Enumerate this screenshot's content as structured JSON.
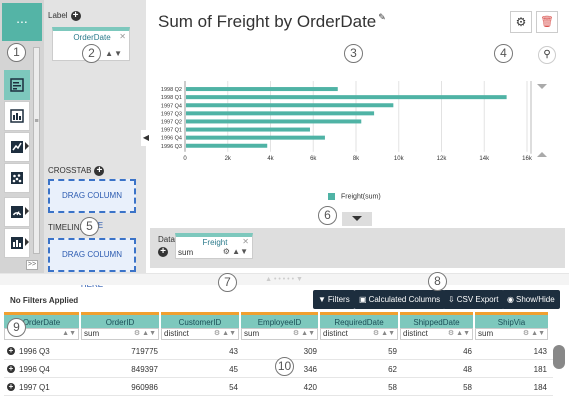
{
  "rail": {
    "top_icon": "...",
    "expand": ">>",
    "buttons": [
      "bar-chart-icon",
      "column-chart-icon",
      "line-chart-icon",
      "scatter-icon",
      "gauge-icon",
      "table-icon"
    ]
  },
  "config": {
    "label_header": "Label",
    "label_pill": {
      "name": "OrderDate"
    },
    "crosstab_header": "CROSSTAB",
    "timeline_header": "TIMELINE",
    "dropzone_text": "DRAG COLUMN HERE"
  },
  "chart": {
    "title": "Sum of Freight by OrderDate",
    "legend": "Freight(sum)",
    "color": "#4fb3a5"
  },
  "chart_data": {
    "type": "bar",
    "orientation": "horizontal",
    "title": "Sum of Freight by OrderDate",
    "categories": [
      "1998 Q2",
      "1998 Q1",
      "1997 Q4",
      "1997 Q3",
      "1997 Q2",
      "1997 Q1",
      "1996 Q4",
      "1996 Q3"
    ],
    "series": [
      {
        "name": "Freight(sum)",
        "values": [
          7100,
          15000,
          9700,
          8800,
          8200,
          5800,
          6500,
          3800
        ]
      }
    ],
    "xlim": [
      0,
      16000
    ],
    "xticks": [
      "0",
      "2k",
      "4k",
      "6k",
      "8k",
      "10k",
      "12k",
      "14k",
      "16k"
    ],
    "grid": true,
    "legend_position": "bottom"
  },
  "data_strip": {
    "label": "Data",
    "pill": {
      "name": "Freight",
      "agg": "sum"
    }
  },
  "grid": {
    "no_filters": "No Filters Applied",
    "toolbar": {
      "filters": "Filters",
      "calculated": "Calculated Columns",
      "csv": "CSV Export",
      "showhide": "Show/Hide"
    },
    "columns": [
      {
        "name": "OrderDate",
        "agg": ""
      },
      {
        "name": "OrderID",
        "agg": "sum"
      },
      {
        "name": "CustomerID",
        "agg": "distinct"
      },
      {
        "name": "EmployeeID",
        "agg": "sum"
      },
      {
        "name": "RequiredDate",
        "agg": "distinct"
      },
      {
        "name": "ShippedDate",
        "agg": "distinct"
      },
      {
        "name": "ShipVia",
        "agg": "sum"
      }
    ],
    "rows": [
      [
        "1996 Q3",
        "719775",
        "43",
        "309",
        "59",
        "46",
        "143"
      ],
      [
        "1996 Q4",
        "849397",
        "45",
        "346",
        "62",
        "48",
        "181"
      ],
      [
        "1997 Q1",
        "960986",
        "54",
        "420",
        "58",
        "58",
        "184"
      ]
    ]
  },
  "callouts": [
    "1",
    "2",
    "3",
    "4",
    "5",
    "6",
    "7",
    "8",
    "9",
    "10"
  ]
}
